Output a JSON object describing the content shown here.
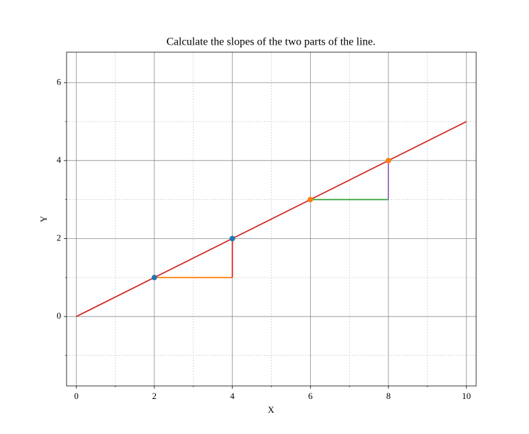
{
  "chart_data": {
    "type": "line",
    "title": "Calculate the slopes of the two parts of the line.",
    "x_label": "X",
    "y_label": "Y",
    "xlim": [
      -0.25,
      10.25
    ],
    "ylim": [
      -1.78,
      6.78
    ],
    "xticks": [
      0,
      2,
      4,
      6,
      8,
      10
    ],
    "yticks": [
      0,
      2,
      4,
      6
    ],
    "xminorticks": [
      1,
      3,
      5,
      7,
      9
    ],
    "yminorticks": [
      -1,
      1,
      3,
      5
    ],
    "grid": true,
    "series": [
      {
        "style": "line",
        "color": "#ff7f0e",
        "x": [
          2,
          4
        ],
        "values": [
          1,
          1
        ]
      },
      {
        "style": "line",
        "color": "#d62728",
        "x": [
          4,
          4
        ],
        "values": [
          1,
          2
        ]
      },
      {
        "style": "line",
        "color": "#2ca02c",
        "x": [
          6,
          8
        ],
        "values": [
          3,
          3
        ]
      },
      {
        "style": "line",
        "color": "#9467bd",
        "x": [
          8,
          8
        ],
        "values": [
          3,
          4
        ]
      },
      {
        "style": "line",
        "color": "#d62728",
        "x": [
          0,
          10
        ],
        "values": [
          0,
          5
        ]
      },
      {
        "style": "scatter",
        "color": "#1f77b4",
        "x": [
          2,
          4
        ],
        "values": [
          1,
          2
        ]
      },
      {
        "style": "scatter",
        "color": "#ff7f0e",
        "x": [
          6,
          8
        ],
        "values": [
          3,
          4
        ]
      }
    ]
  }
}
